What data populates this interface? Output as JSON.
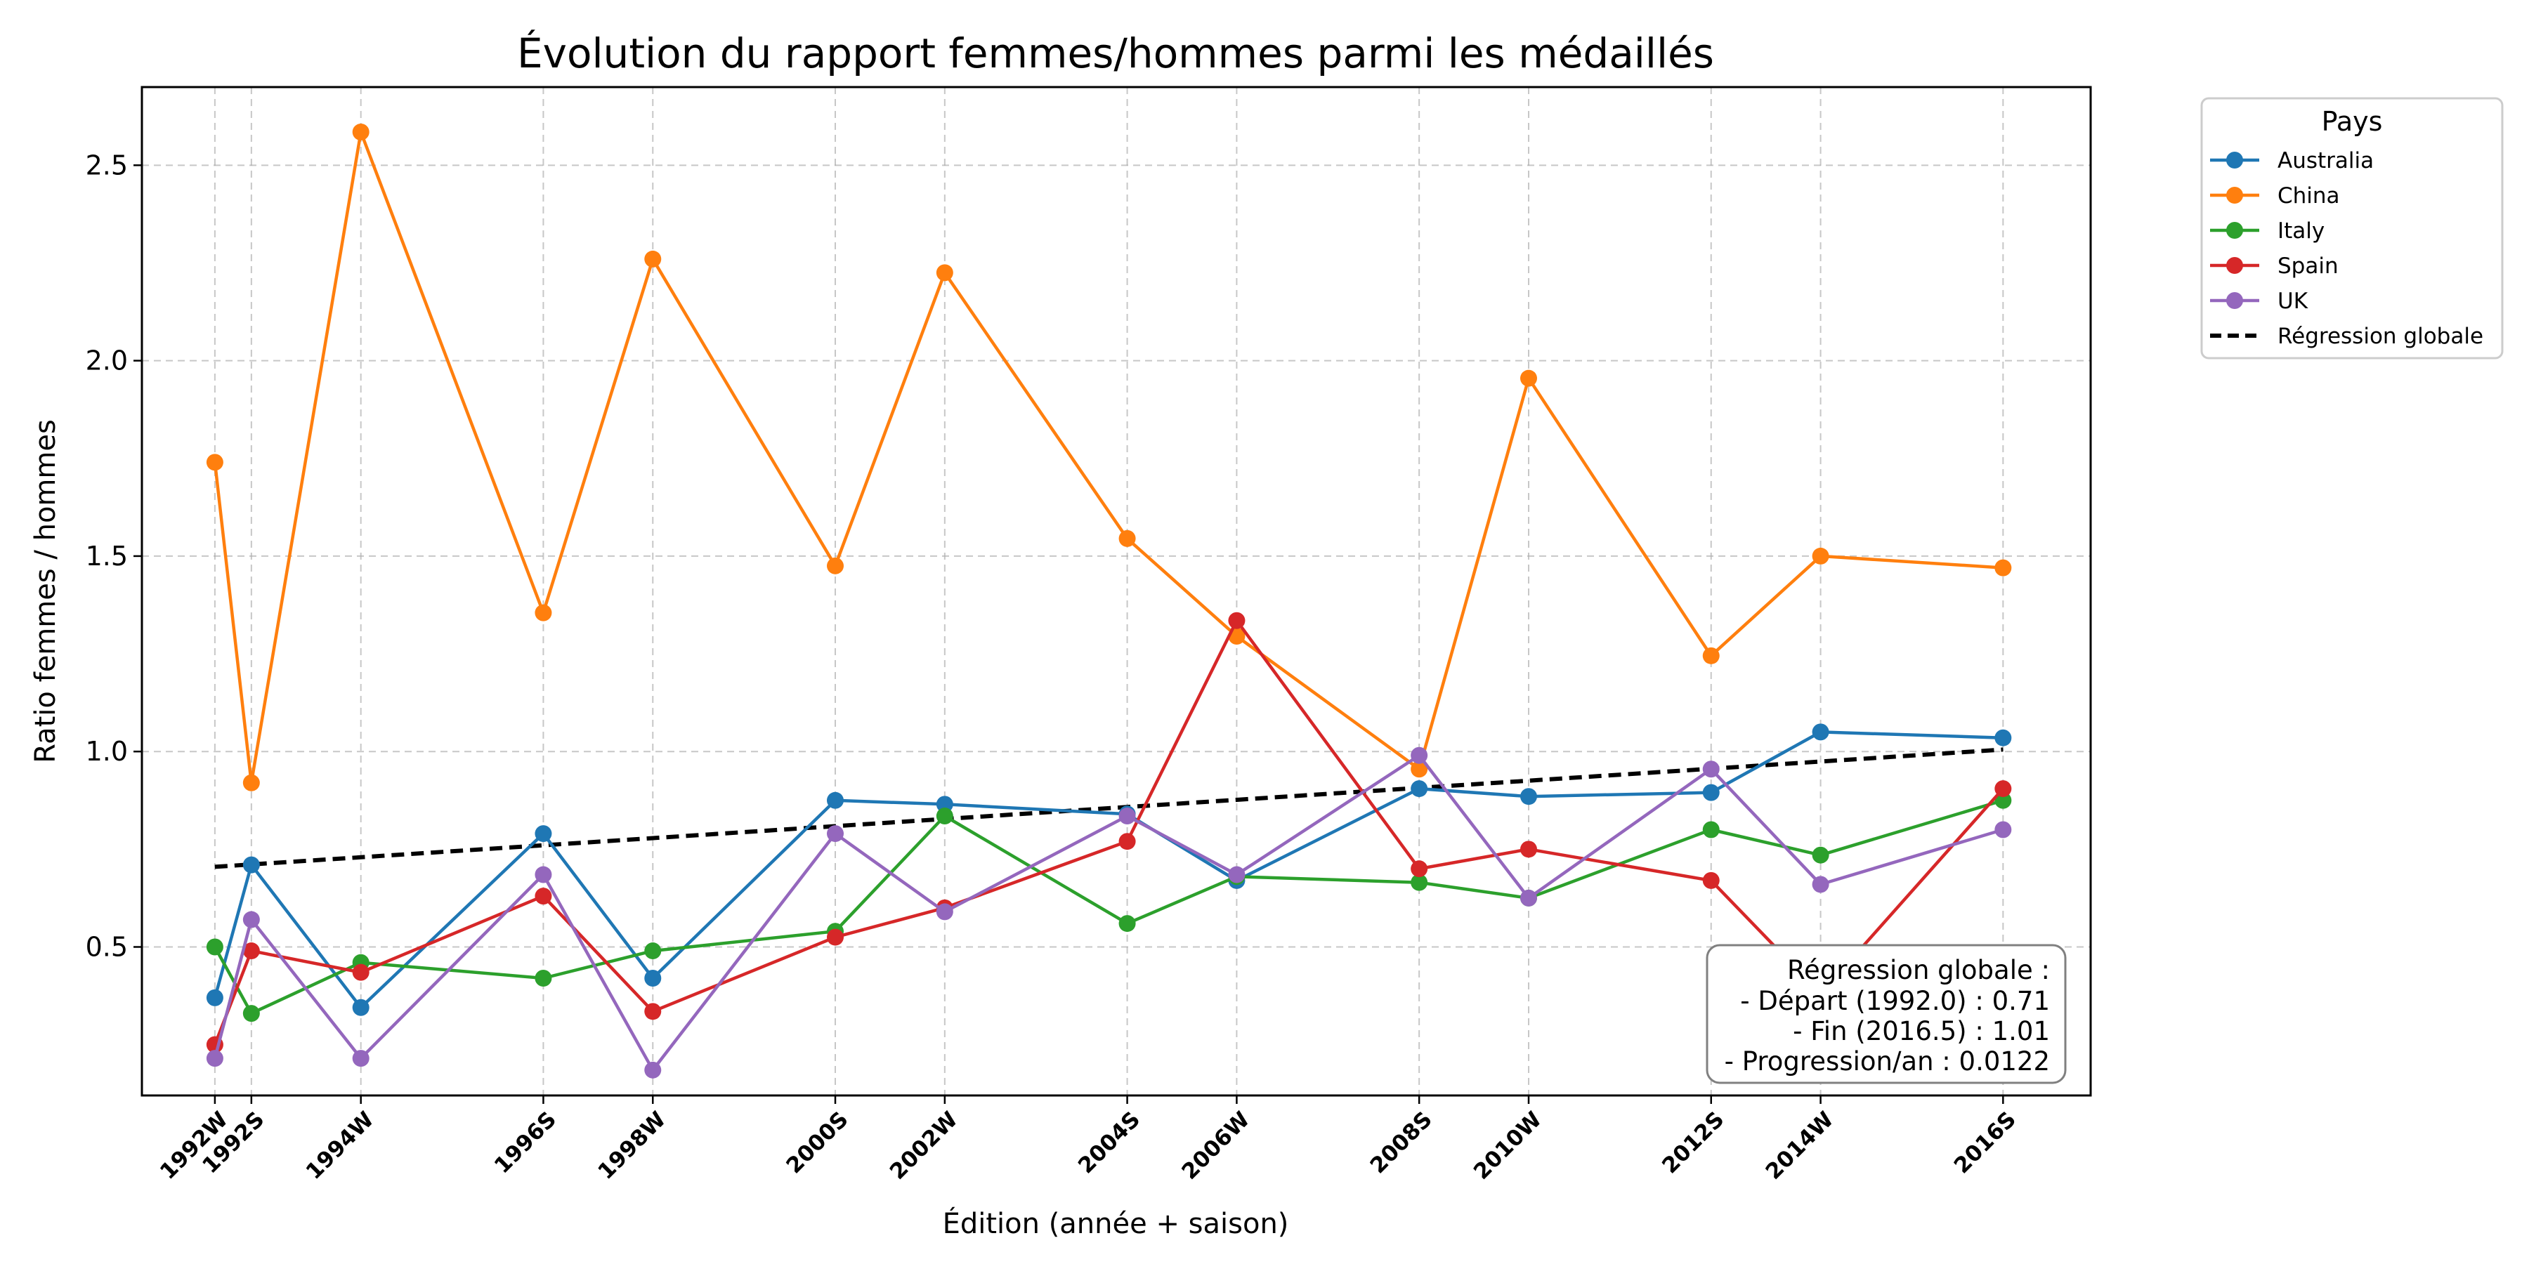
{
  "chart_data": {
    "type": "line",
    "title": "Évolution du rapport femmes/hommes parmi les médaillés",
    "xlabel": "Édition (année + saison)",
    "ylabel": "Ratio femmes / hommes",
    "x_numeric": [
      1992.0,
      1992.5,
      1994.0,
      1996.5,
      1998.0,
      2000.5,
      2002.0,
      2004.5,
      2006.0,
      2008.5,
      2010.0,
      2012.5,
      2014.0,
      2016.5
    ],
    "categories": [
      "1992W",
      "1992S",
      "1994W",
      "1996S",
      "1998W",
      "2000S",
      "2002W",
      "2004S",
      "2006W",
      "2008S",
      "2010W",
      "2012S",
      "2014W",
      "2016S"
    ],
    "xlim": [
      1991.0,
      2017.7
    ],
    "ylim": [
      0.12,
      2.7
    ],
    "yticks": [
      0.5,
      1.0,
      1.5,
      2.0,
      2.5
    ],
    "ytick_labels": [
      "0.5",
      "1.0",
      "1.5",
      "2.0",
      "2.5"
    ],
    "grid": true,
    "legend_title": "Pays",
    "legend_position": "outside-right",
    "series": [
      {
        "name": "Australia",
        "color": "#1f77b4",
        "values": [
          0.37,
          0.71,
          0.345,
          0.79,
          0.42,
          0.875,
          0.865,
          0.84,
          0.67,
          0.905,
          0.885,
          0.895,
          1.05,
          1.035
        ]
      },
      {
        "name": "China",
        "color": "#ff7f0e",
        "values": [
          1.74,
          0.92,
          2.585,
          1.355,
          2.26,
          1.475,
          2.225,
          1.545,
          1.295,
          0.955,
          1.955,
          1.245,
          1.5,
          1.47
        ]
      },
      {
        "name": "Italy",
        "color": "#2ca02c",
        "values": [
          0.5,
          0.33,
          0.46,
          0.42,
          0.49,
          0.54,
          0.835,
          0.56,
          0.68,
          0.665,
          0.625,
          0.8,
          0.735,
          0.875
        ]
      },
      {
        "name": "Spain",
        "color": "#d62728",
        "values": [
          0.25,
          0.49,
          0.435,
          0.63,
          0.335,
          0.525,
          0.6,
          0.77,
          1.335,
          0.7,
          0.75,
          0.67,
          0.38,
          0.905
        ]
      },
      {
        "name": "UK",
        "color": "#9467bd",
        "values": [
          0.215,
          0.57,
          0.215,
          0.685,
          0.185,
          0.79,
          0.59,
          0.835,
          0.685,
          0.99,
          0.625,
          0.955,
          0.66,
          0.8
        ]
      }
    ],
    "regression": {
      "name": "Régression globale",
      "color": "#000000",
      "x": [
        1992.0,
        2016.5
      ],
      "y": [
        0.705,
        1.005
      ]
    },
    "annotation": {
      "lines": [
        "Régression globale :",
        "- Départ (1992.0) : 0.71",
        "- Fin (2016.5) : 1.01",
        "- Progression/an : 0.0122"
      ],
      "position": "bottom-right"
    }
  }
}
